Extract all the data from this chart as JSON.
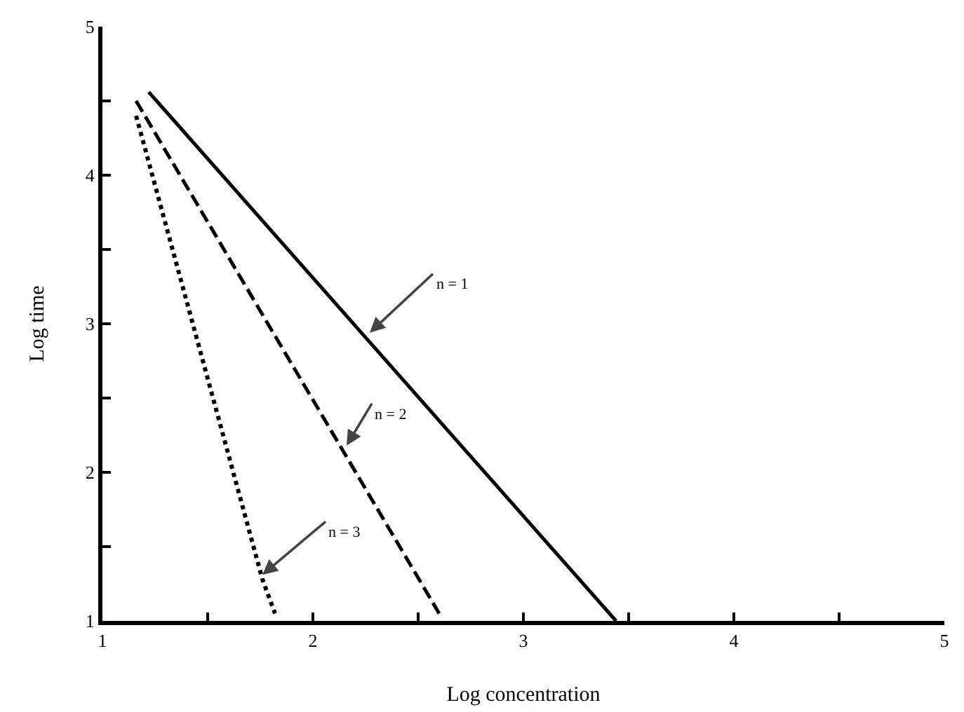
{
  "chart_data": {
    "type": "line",
    "xlabel": "Log concentration",
    "ylabel": "Log time",
    "xlim": [
      1,
      5
    ],
    "ylim": [
      1,
      5
    ],
    "xticks": [
      1,
      {
        "value": 1.5,
        "label": null
      },
      2,
      {
        "value": 2.5,
        "label": null
      },
      3,
      {
        "value": 3.5,
        "label": null
      },
      4,
      {
        "value": 4.5,
        "label": null
      },
      5
    ],
    "yticks": [
      1,
      {
        "value": 1.5,
        "label": null
      },
      2,
      {
        "value": 2.5,
        "label": null
      },
      3,
      {
        "value": 3.5,
        "label": null
      },
      4,
      {
        "value": 4.5,
        "label": null
      },
      5
    ],
    "marker": "none",
    "series": [
      {
        "color": "#000000",
        "line_style": "solid",
        "x": [
          1.22,
          3.44
        ],
        "values": [
          4.56,
          1.0
        ]
      },
      {
        "color": "#000000",
        "line_style": "dashed",
        "x": [
          1.16,
          2.6
        ],
        "values": [
          4.5,
          1.05
        ]
      },
      {
        "color": "#000000",
        "line_style": "dotted",
        "x": [
          1.16,
          1.76,
          1.82
        ],
        "values": [
          4.4,
          1.28,
          1.05
        ]
      }
    ],
    "annotations": [
      {
        "text": "n = 1",
        "x": 2.27,
        "y": 2.94
      },
      {
        "text": "n = 2",
        "x": 2.16,
        "y": 2.18
      },
      {
        "text": "n = 3",
        "x": 1.76,
        "y": 1.31
      }
    ]
  }
}
